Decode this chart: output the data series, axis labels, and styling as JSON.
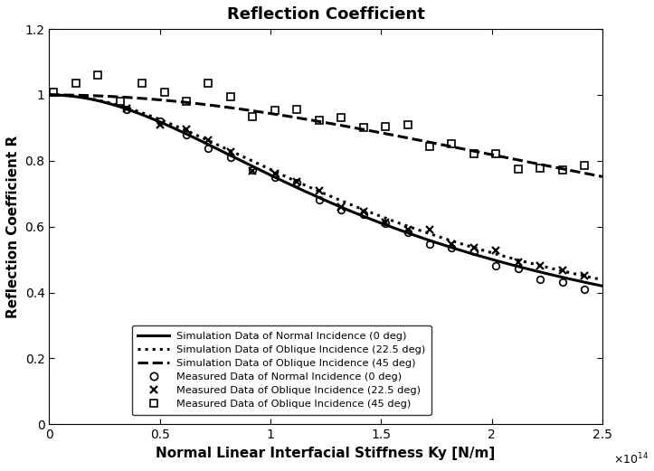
{
  "title": "Reflection Coefficient",
  "xlabel": "Normal Linear Interfacial Stiffness Ky [N/m]",
  "ylabel": "Reflection Coefficient R",
  "xlim": [
    0,
    250000000000000.0
  ],
  "ylim": [
    0,
    1.2
  ],
  "legend_labels": [
    "Simulation Data of Normal Incidence (0 deg)",
    "Simulation Data of Oblique Incidence (22.5 deg)",
    "Simulation Data of Oblique Incidence (45 deg)",
    "Measured Data of Normal Incidence (0 deg)",
    "Measured Data of Oblique Incidence (22.5 deg)",
    "Measured Data of Oblique Incidence (45 deg)"
  ],
  "background_color": "#ffffff",
  "kappa_0": 115700000000000.0,
  "kappa_22": 122000000000000.0,
  "kappa_45": 285000000000000.0,
  "scatter_ky_0_22": [
    35000000000000.0,
    50000000000000.0,
    62000000000000.0,
    72000000000000.0,
    82000000000000.0,
    92000000000000.0,
    102000000000000.0,
    112000000000000.0,
    122000000000000.0,
    132000000000000.0,
    142000000000000.0,
    152000000000000.0,
    162000000000000.0,
    172000000000000.0,
    182000000000000.0,
    192000000000000.0,
    202000000000000.0,
    212000000000000.0,
    222000000000000.0,
    232000000000000.0,
    242000000000000.0
  ],
  "scatter_ky_45": [
    2000000000000.0,
    12000000000000.0,
    22000000000000.0,
    32000000000000.0,
    42000000000000.0,
    52000000000000.0,
    62000000000000.0,
    72000000000000.0,
    82000000000000.0,
    92000000000000.0,
    102000000000000.0,
    112000000000000.0,
    122000000000000.0,
    132000000000000.0,
    142000000000000.0,
    152000000000000.0,
    162000000000000.0,
    172000000000000.0,
    182000000000000.0,
    192000000000000.0,
    202000000000000.0,
    212000000000000.0,
    222000000000000.0,
    232000000000000.0,
    242000000000000.0
  ]
}
